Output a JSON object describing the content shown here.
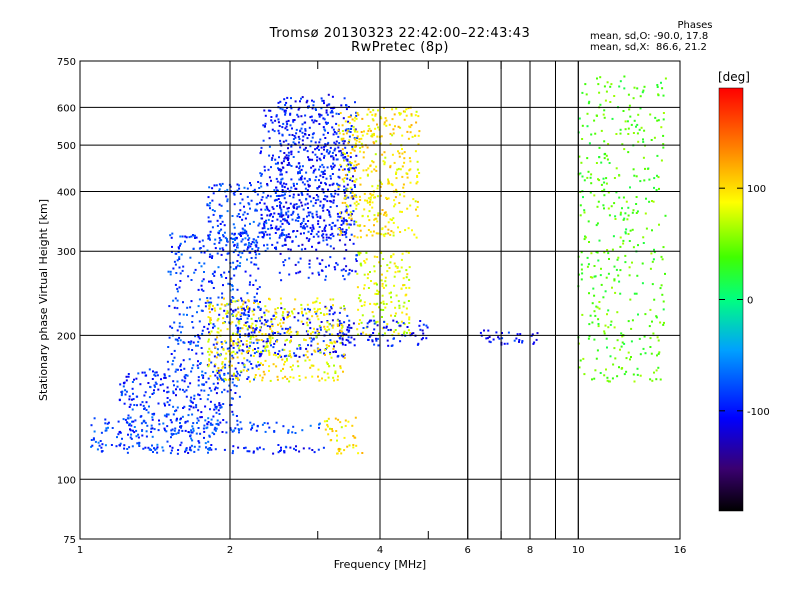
{
  "header": {
    "title": "Tromsø 20130323 22:42:00–22:43:43",
    "subtitle": "RwPretec (8p)"
  },
  "stats": {
    "heading": "Phases",
    "lines": [
      "mean, sd,O: -90.0, 17.8",
      "mean, sd,X:  86.6, 21.2"
    ]
  },
  "colorbar": {
    "unit": "[deg]",
    "tick_labels": [
      "100",
      "0",
      "-100"
    ],
    "ticks": [
      100,
      0,
      -100
    ],
    "range": [
      -190,
      190
    ]
  },
  "chart_data": {
    "type": "scatter",
    "title": "Tromsø 20130323 22:42:00–22:43:43",
    "subtitle": "RwPretec (8p)",
    "xlabel": "Frequency [MHz]",
    "ylabel": "Stationary phase Virtual Height [km]",
    "xscale": "log",
    "yscale": "log",
    "xlim": [
      1,
      16
    ],
    "ylim": [
      75,
      750
    ],
    "xticks": [
      1,
      2,
      4,
      6,
      8,
      10,
      16
    ],
    "xtick_labels": [
      "1",
      "2",
      "4",
      "6",
      "8",
      "10",
      "16"
    ],
    "yticks": [
      75,
      100,
      200,
      300,
      400,
      500,
      600,
      750
    ],
    "ytick_labels": [
      "75",
      "100",
      "200",
      "300",
      "400",
      "500",
      "600",
      "750"
    ],
    "grid": true,
    "color_by": "phase [deg]",
    "clusters": [
      {
        "x_range": [
          1.1,
          3.1
        ],
        "y_range": [
          113,
          118
        ],
        "phase": -95
      },
      {
        "x_range": [
          1.05,
          1.9
        ],
        "y_range": [
          115,
          135
        ],
        "phase": -80
      },
      {
        "x_range": [
          1.2,
          2.1
        ],
        "y_range": [
          125,
          170
        ],
        "phase": -90
      },
      {
        "x_range": [
          1.5,
          2.3
        ],
        "y_range": [
          160,
          330
        ],
        "phase": -85
      },
      {
        "x_range": [
          1.8,
          2.6
        ],
        "y_range": [
          300,
          420
        ],
        "phase": -85
      },
      {
        "x_range": [
          2.3,
          3.5
        ],
        "y_range": [
          320,
          600
        ],
        "phase": -95
      },
      {
        "x_range": [
          2.5,
          3.6
        ],
        "y_range": [
          260,
          640
        ],
        "phase": -100
      },
      {
        "x_range": [
          2.0,
          3.5
        ],
        "y_range": [
          180,
          230
        ],
        "phase": -100
      },
      {
        "x_range": [
          2.0,
          3.1
        ],
        "y_range": [
          125,
          132
        ],
        "phase": -75
      },
      {
        "x_range": [
          3.1,
          3.6
        ],
        "y_range": [
          120,
          135
        ],
        "phase": 95
      },
      {
        "x_range": [
          3.2,
          3.7
        ],
        "y_range": [
          113,
          118
        ],
        "phase": 100
      },
      {
        "x_range": [
          3.3,
          4.8
        ],
        "y_range": [
          320,
          600
        ],
        "phase": 95
      },
      {
        "x_range": [
          3.6,
          4.6
        ],
        "y_range": [
          200,
          300
        ],
        "phase": 80
      },
      {
        "x_range": [
          3.3,
          5.0
        ],
        "y_range": [
          190,
          215
        ],
        "phase": -100
      },
      {
        "x_range": [
          1.8,
          3.4
        ],
        "y_range": [
          160,
          240
        ],
        "phase": 90
      },
      {
        "x_range": [
          6.3,
          8.3
        ],
        "y_range": [
          190,
          205
        ],
        "phase": -100
      },
      {
        "x_range": [
          10.0,
          15.0
        ],
        "y_range": [
          160,
          700
        ],
        "phase": 40
      }
    ]
  }
}
